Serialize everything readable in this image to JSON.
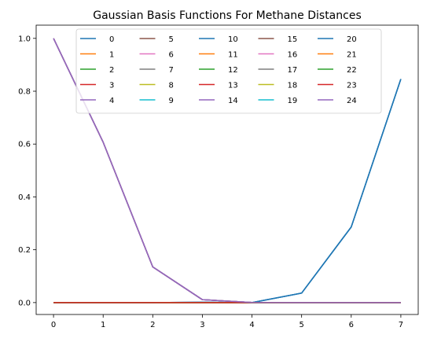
{
  "chart_data": {
    "type": "line",
    "title": "Gaussian Basis Functions For Methane Distances",
    "xlabel": "",
    "ylabel": "",
    "x": [
      0,
      1,
      2,
      3,
      4,
      5,
      6,
      7
    ],
    "xlim": [
      -0.35,
      7.35
    ],
    "ylim": [
      -0.045,
      1.05
    ],
    "xticks": [
      0,
      1,
      2,
      3,
      4,
      5,
      6,
      7
    ],
    "yticks": [
      0.0,
      0.2,
      0.4,
      0.6,
      0.8,
      1.0
    ],
    "ytick_labels": [
      "0.0",
      "0.2",
      "0.4",
      "0.6",
      "0.8",
      "1.0"
    ],
    "grid": false,
    "legend": {
      "placement": "top-center",
      "columns": 5
    },
    "series": [
      {
        "name": "0",
        "color": "#1f77b4",
        "values": [
          0,
          0,
          0,
          0.001,
          0,
          0.036,
          0.286,
          0.846
        ]
      },
      {
        "name": "1",
        "color": "#ff7f0e",
        "values": [
          0,
          0,
          0,
          0,
          0,
          0,
          0,
          0
        ]
      },
      {
        "name": "2",
        "color": "#2ca02c",
        "values": [
          0,
          0,
          0,
          0,
          0,
          0,
          0,
          0
        ]
      },
      {
        "name": "3",
        "color": "#d62728",
        "values": [
          0,
          0,
          0,
          0,
          0,
          0,
          0,
          0
        ]
      },
      {
        "name": "4",
        "color": "#9467bd",
        "values": [
          1.0,
          0.607,
          0.135,
          0.011,
          0.0003,
          0,
          0,
          0
        ]
      },
      {
        "name": "5",
        "color": "#8c564b",
        "values": [
          0,
          0,
          0,
          0,
          0,
          0,
          0,
          0
        ]
      },
      {
        "name": "6",
        "color": "#e377c2",
        "values": [
          1.0,
          0.607,
          0.135,
          0.011,
          0.0003,
          0,
          0,
          0
        ]
      },
      {
        "name": "7",
        "color": "#7f7f7f",
        "values": [
          1.0,
          0.607,
          0.135,
          0.011,
          0.0003,
          0,
          0,
          0
        ]
      },
      {
        "name": "8",
        "color": "#bcbd22",
        "values": [
          0,
          0,
          0,
          0,
          0,
          0,
          0,
          0
        ]
      },
      {
        "name": "9",
        "color": "#17becf",
        "values": [
          0,
          0,
          0,
          0,
          0,
          0,
          0,
          0
        ]
      },
      {
        "name": "10",
        "color": "#1f77b4",
        "values": [
          0,
          0,
          0,
          0.001,
          0,
          0.036,
          0.286,
          0.846
        ]
      },
      {
        "name": "11",
        "color": "#ff7f0e",
        "values": [
          0,
          0,
          0,
          0,
          0,
          0,
          0,
          0
        ]
      },
      {
        "name": "12",
        "color": "#2ca02c",
        "values": [
          0,
          0,
          0,
          0,
          0,
          0,
          0,
          0
        ]
      },
      {
        "name": "13",
        "color": "#d62728",
        "values": [
          0,
          0,
          0,
          0,
          0,
          0,
          0,
          0
        ]
      },
      {
        "name": "14",
        "color": "#9467bd",
        "values": [
          1.0,
          0.607,
          0.135,
          0.011,
          0.0003,
          0,
          0,
          0
        ]
      },
      {
        "name": "15",
        "color": "#8c564b",
        "values": [
          0,
          0,
          0,
          0,
          0,
          0,
          0,
          0
        ]
      },
      {
        "name": "16",
        "color": "#e377c2",
        "values": [
          1.0,
          0.607,
          0.135,
          0.011,
          0.0003,
          0,
          0,
          0
        ]
      },
      {
        "name": "17",
        "color": "#7f7f7f",
        "values": [
          1.0,
          0.607,
          0.135,
          0.011,
          0.0003,
          0,
          0,
          0
        ]
      },
      {
        "name": "18",
        "color": "#bcbd22",
        "values": [
          0,
          0,
          0,
          0,
          0,
          0,
          0,
          0
        ]
      },
      {
        "name": "19",
        "color": "#17becf",
        "values": [
          0,
          0,
          0,
          0,
          0,
          0,
          0,
          0
        ]
      },
      {
        "name": "20",
        "color": "#1f77b4",
        "values": [
          0,
          0,
          0,
          0.001,
          0,
          0.036,
          0.286,
          0.846
        ]
      },
      {
        "name": "21",
        "color": "#ff7f0e",
        "values": [
          0,
          0,
          0,
          0,
          0,
          0,
          0,
          0
        ]
      },
      {
        "name": "22",
        "color": "#2ca02c",
        "values": [
          0,
          0,
          0,
          0,
          0,
          0,
          0,
          0
        ]
      },
      {
        "name": "23",
        "color": "#d62728",
        "values": [
          0,
          0,
          0,
          0,
          0,
          0,
          0,
          0
        ]
      },
      {
        "name": "24",
        "color": "#9467bd",
        "values": [
          1.0,
          0.607,
          0.135,
          0.011,
          0.0003,
          0,
          0,
          0
        ]
      }
    ]
  }
}
